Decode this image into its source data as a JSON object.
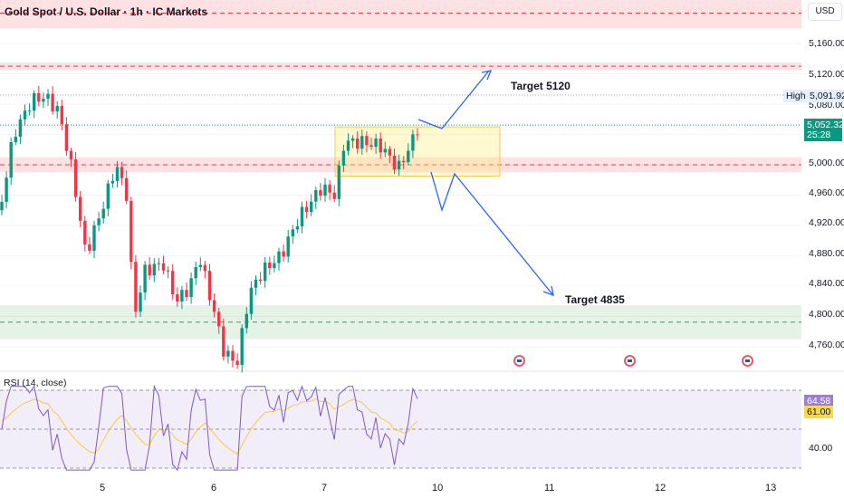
{
  "header": {
    "title": "Gold Spot / U.S. Dollar · 1h · IC Markets",
    "currency": "USD"
  },
  "price_axis": {
    "labels": [
      "5,160.00",
      "5,120.00",
      "5,080.00",
      "5,000.00",
      "4,960.00",
      "4,920.00",
      "4,880.00",
      "4,840.00",
      "4,800.00",
      "4,760.00"
    ]
  },
  "high_tag": {
    "label": "High",
    "value": "5,091.92"
  },
  "last_price": {
    "value": "5,052.32",
    "countdown": "25:28"
  },
  "annotations": {
    "target_up": "Target 5120",
    "target_down": "Target 4835"
  },
  "x_axis": {
    "labels": [
      "5",
      "6",
      "7",
      "10",
      "11",
      "12",
      "13"
    ]
  },
  "rsi": {
    "title": "RSI (14, close)",
    "value": "64.58",
    "ma_value": "61.00",
    "axis_label": "40.00"
  },
  "colors": {
    "up": "#089981",
    "down": "#f23645",
    "rsi": "#7e57c2",
    "rsi_ma": "#f7c948"
  },
  "chart_data": {
    "type": "candlestick",
    "price_keypoints": [
      [
        0,
        4940
      ],
      [
        15,
        5040
      ],
      [
        35,
        5085
      ],
      [
        50,
        5090
      ],
      [
        65,
        5070
      ],
      [
        80,
        4990
      ],
      [
        95,
        4880
      ],
      [
        100,
        4900
      ],
      [
        115,
        4950
      ],
      [
        128,
        5000
      ],
      [
        140,
        4960
      ],
      [
        148,
        4800
      ],
      [
        160,
        4860
      ],
      [
        180,
        4870
      ],
      [
        195,
        4820
      ],
      [
        210,
        4840
      ],
      [
        220,
        4880
      ],
      [
        240,
        4790
      ],
      [
        248,
        4750
      ],
      [
        262,
        4740
      ],
      [
        275,
        4830
      ],
      [
        290,
        4860
      ],
      [
        310,
        4880
      ],
      [
        330,
        4930
      ],
      [
        355,
        4970
      ],
      [
        370,
        4960
      ],
      [
        380,
        5030
      ],
      [
        400,
        5030
      ],
      [
        420,
        5025
      ],
      [
        440,
        4995
      ],
      [
        455,
        5030
      ],
      [
        462,
        5052
      ]
    ],
    "zones": [
      {
        "type": "resistance",
        "from": 5180,
        "to": 5220
      },
      {
        "type": "resistance",
        "from": 5125,
        "to": 5135
      },
      {
        "type": "resistance",
        "from": 4990,
        "to": 5010
      },
      {
        "type": "support",
        "from": 4770,
        "to": 4815
      },
      {
        "type": "consolidation",
        "from": 4985,
        "to": 5050
      }
    ],
    "high": 5091.92,
    "last": 5052.32
  }
}
